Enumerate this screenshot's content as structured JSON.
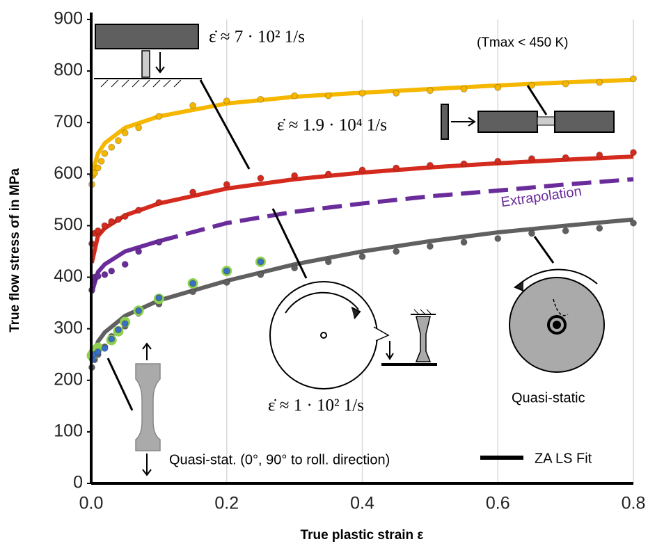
{
  "chart_data": {
    "type": "scatter",
    "xlabel": "True plastic strain ε",
    "ylabel": "True flow stress σf in MPa",
    "xlim": [
      0,
      0.8
    ],
    "ylim": [
      0,
      900
    ],
    "xticks": [
      {
        "value": 0,
        "label": "0.0"
      },
      0.2,
      0.4,
      0.6,
      0.8
    ],
    "yticks": [
      0,
      100,
      200,
      300,
      400,
      500,
      600,
      700,
      800,
      900
    ],
    "grid": "x",
    "annotations": [
      "ε̇ ≈ 7 · 10² 1/s",
      "(Tmax < 450 K)",
      "ε̇ ≈ 1.9 · 10⁴ 1/s",
      "Extrapolation",
      "ε̇ ≈ 1 · 10² 1/s",
      "Quasi-static",
      "Quasi-stat. (0°, 90° to roll. direction)"
    ],
    "legend": {
      "label": "ZA LS Fit",
      "color": "#000000"
    },
    "series": [
      {
        "kind": "line",
        "color": "#f5b700",
        "x": [
          0.001,
          0.01,
          0.02,
          0.05,
          0.1,
          0.2,
          0.3,
          0.4,
          0.5,
          0.6,
          0.7,
          0.8
        ],
        "values": [
          600,
          640,
          660,
          690,
          712,
          737,
          750,
          758,
          765,
          772,
          778,
          783
        ]
      },
      {
        "kind": "line",
        "color": "#d52b1e",
        "x": [
          0.001,
          0.01,
          0.02,
          0.05,
          0.1,
          0.2,
          0.3,
          0.4,
          0.5,
          0.6,
          0.7,
          0.8
        ],
        "values": [
          428,
          480,
          495,
          520,
          543,
          572,
          590,
          603,
          613,
          621,
          628,
          634
        ]
      },
      {
        "kind": "line",
        "color": "#6a2c9a",
        "x": [
          0.001,
          0.01,
          0.02,
          0.05,
          0.1
        ],
        "values": [
          370,
          410,
          425,
          450,
          470
        ]
      },
      {
        "kind": "line",
        "color": "#6a2c9a",
        "dashed": true,
        "x": [
          0.1,
          0.2,
          0.3,
          0.4,
          0.5,
          0.6,
          0.7,
          0.8
        ],
        "values": [
          470,
          505,
          527,
          543,
          557,
          568,
          580,
          590
        ]
      },
      {
        "kind": "line",
        "color": "#606060",
        "x": [
          0.001,
          0.01,
          0.02,
          0.05,
          0.1,
          0.2,
          0.3,
          0.4,
          0.5,
          0.6,
          0.7,
          0.8
        ],
        "values": [
          240,
          275,
          293,
          325,
          355,
          393,
          425,
          450,
          470,
          487,
          500,
          512
        ]
      },
      {
        "kind": "points",
        "color": "#f5b700",
        "x": [
          0.001,
          0.002,
          0.005,
          0.01,
          0.015,
          0.02,
          0.03,
          0.04,
          0.05,
          0.07,
          0.1,
          0.15,
          0.2,
          0.25,
          0.3,
          0.35,
          0.4,
          0.45,
          0.5,
          0.55,
          0.6,
          0.65,
          0.7,
          0.75,
          0.8
        ],
        "values": [
          580,
          597,
          602,
          612,
          625,
          640,
          652,
          665,
          680,
          690,
          712,
          733,
          742,
          745,
          752,
          752,
          757,
          757,
          762,
          765,
          768,
          772,
          775,
          778,
          785
        ]
      },
      {
        "kind": "points",
        "color": "#d52b1e",
        "x": [
          0.001,
          0.005,
          0.01,
          0.02,
          0.03,
          0.04,
          0.05,
          0.07,
          0.1,
          0.15,
          0.2,
          0.25,
          0.3,
          0.35,
          0.4,
          0.45,
          0.5,
          0.55,
          0.6,
          0.65,
          0.7,
          0.75,
          0.8
        ],
        "values": [
          465,
          485,
          490,
          500,
          508,
          512,
          518,
          530,
          545,
          565,
          580,
          592,
          597,
          600,
          608,
          612,
          617,
          620,
          625,
          630,
          632,
          637,
          642
        ]
      },
      {
        "kind": "points",
        "color": "#6a2c9a",
        "x": [
          0.001,
          0.003,
          0.005,
          0.01,
          0.02,
          0.03,
          0.05,
          0.07,
          0.1
        ],
        "values": [
          375,
          395,
          400,
          402,
          405,
          412,
          425,
          450,
          468
        ]
      },
      {
        "kind": "points",
        "color": "#606060",
        "x": [
          0.001,
          0.005,
          0.01,
          0.02,
          0.03,
          0.04,
          0.05,
          0.07,
          0.1,
          0.15,
          0.2,
          0.25,
          0.3,
          0.35,
          0.4,
          0.45,
          0.5,
          0.55,
          0.6,
          0.65,
          0.7,
          0.75,
          0.8
        ],
        "values": [
          225,
          240,
          250,
          265,
          285,
          295,
          305,
          330,
          348,
          372,
          390,
          405,
          418,
          430,
          440,
          450,
          460,
          468,
          475,
          485,
          490,
          495,
          505
        ]
      },
      {
        "kind": "rings",
        "color": "#8fd14f",
        "x": [
          0.001,
          0.003,
          0.005,
          0.01,
          0.03,
          0.04,
          0.05,
          0.07,
          0.1,
          0.15,
          0.2,
          0.25
        ],
        "values": [
          248,
          252,
          258,
          263,
          278,
          295,
          313,
          335,
          358,
          388,
          412,
          430
        ]
      },
      {
        "kind": "points",
        "color": "#3a6fc4",
        "x": [
          0.002,
          0.005,
          0.01,
          0.02,
          0.03,
          0.04,
          0.05,
          0.07,
          0.1,
          0.15,
          0.2,
          0.25
        ],
        "values": [
          240,
          250,
          255,
          262,
          280,
          298,
          310,
          335,
          360,
          388,
          412,
          430
        ]
      }
    ]
  }
}
